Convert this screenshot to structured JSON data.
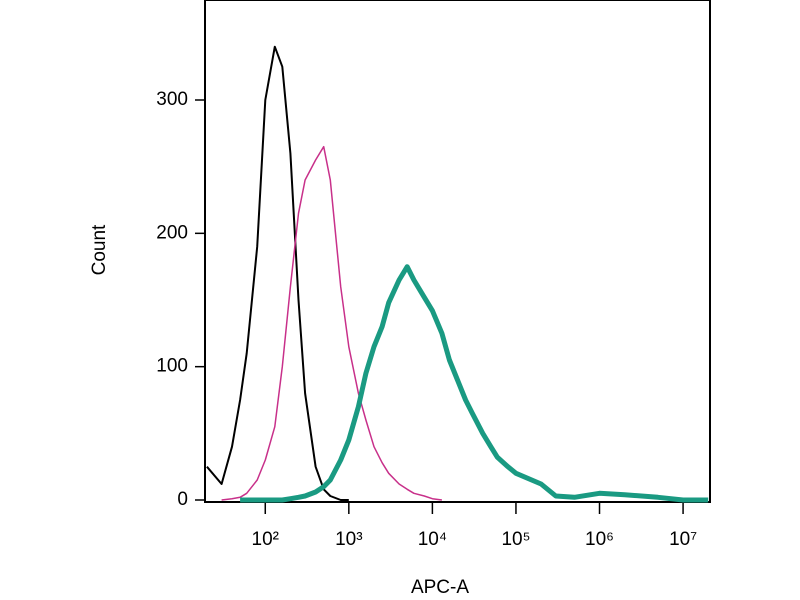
{
  "chart_data": {
    "type": "line",
    "xlabel": "APC-A",
    "ylabel": "Count",
    "xscale": "log",
    "x": [
      20,
      30,
      40,
      50,
      60,
      80,
      100,
      130,
      160,
      200,
      250,
      300,
      400,
      500,
      600,
      800,
      1000,
      1300,
      1600,
      2000,
      2500,
      3000,
      4000,
      5000,
      6000,
      8000,
      10000,
      13000,
      16000,
      20000,
      25000,
      30000,
      40000,
      50000,
      60000,
      80000,
      100000,
      200000,
      300000,
      500000,
      1000000,
      2000000,
      5000000,
      10000000,
      20000000
    ],
    "series": [
      {
        "color": "#000000",
        "width": 2,
        "values": [
          25,
          12,
          40,
          75,
          110,
          190,
          300,
          340,
          325,
          260,
          150,
          80,
          25,
          8,
          3,
          0,
          0,
          null,
          null,
          null,
          null,
          null,
          null,
          null,
          null,
          null,
          null,
          null,
          null,
          null,
          null,
          null,
          null,
          null,
          null,
          null,
          null,
          null,
          null,
          null,
          null,
          null,
          null,
          null,
          null
        ]
      },
      {
        "color": "#c8308a",
        "width": 1.5,
        "values": [
          null,
          0,
          1,
          2,
          5,
          15,
          30,
          55,
          100,
          160,
          215,
          240,
          255,
          265,
          240,
          160,
          115,
          80,
          60,
          40,
          28,
          20,
          12,
          8,
          5,
          3,
          1,
          0,
          null,
          null,
          null,
          null,
          null,
          null,
          null,
          null,
          null,
          null,
          null,
          null,
          null,
          null,
          null,
          null,
          null
        ]
      },
      {
        "color": "#1a9a82",
        "width": 5,
        "values": [
          null,
          null,
          null,
          0,
          0,
          0,
          0,
          0,
          0,
          1,
          2,
          3,
          6,
          10,
          15,
          30,
          45,
          70,
          95,
          115,
          130,
          148,
          165,
          175,
          165,
          152,
          142,
          125,
          105,
          90,
          75,
          65,
          50,
          40,
          32,
          25,
          20,
          12,
          3,
          2,
          5,
          4,
          2,
          0,
          0
        ]
      }
    ],
    "xlim": [
      19,
      21000000
    ],
    "xticks": [
      {
        "value": 100,
        "label": "10²"
      },
      {
        "value": 1000,
        "label": "10³"
      },
      {
        "value": 10000,
        "label": "10⁴"
      },
      {
        "value": 100000,
        "label": "10⁵"
      },
      {
        "value": 1000000,
        "label": "10⁶"
      },
      {
        "value": 10000000,
        "label": "10⁷"
      }
    ],
    "ylim": [
      0,
      375
    ],
    "yticks": [
      0,
      100,
      200,
      300
    ]
  }
}
